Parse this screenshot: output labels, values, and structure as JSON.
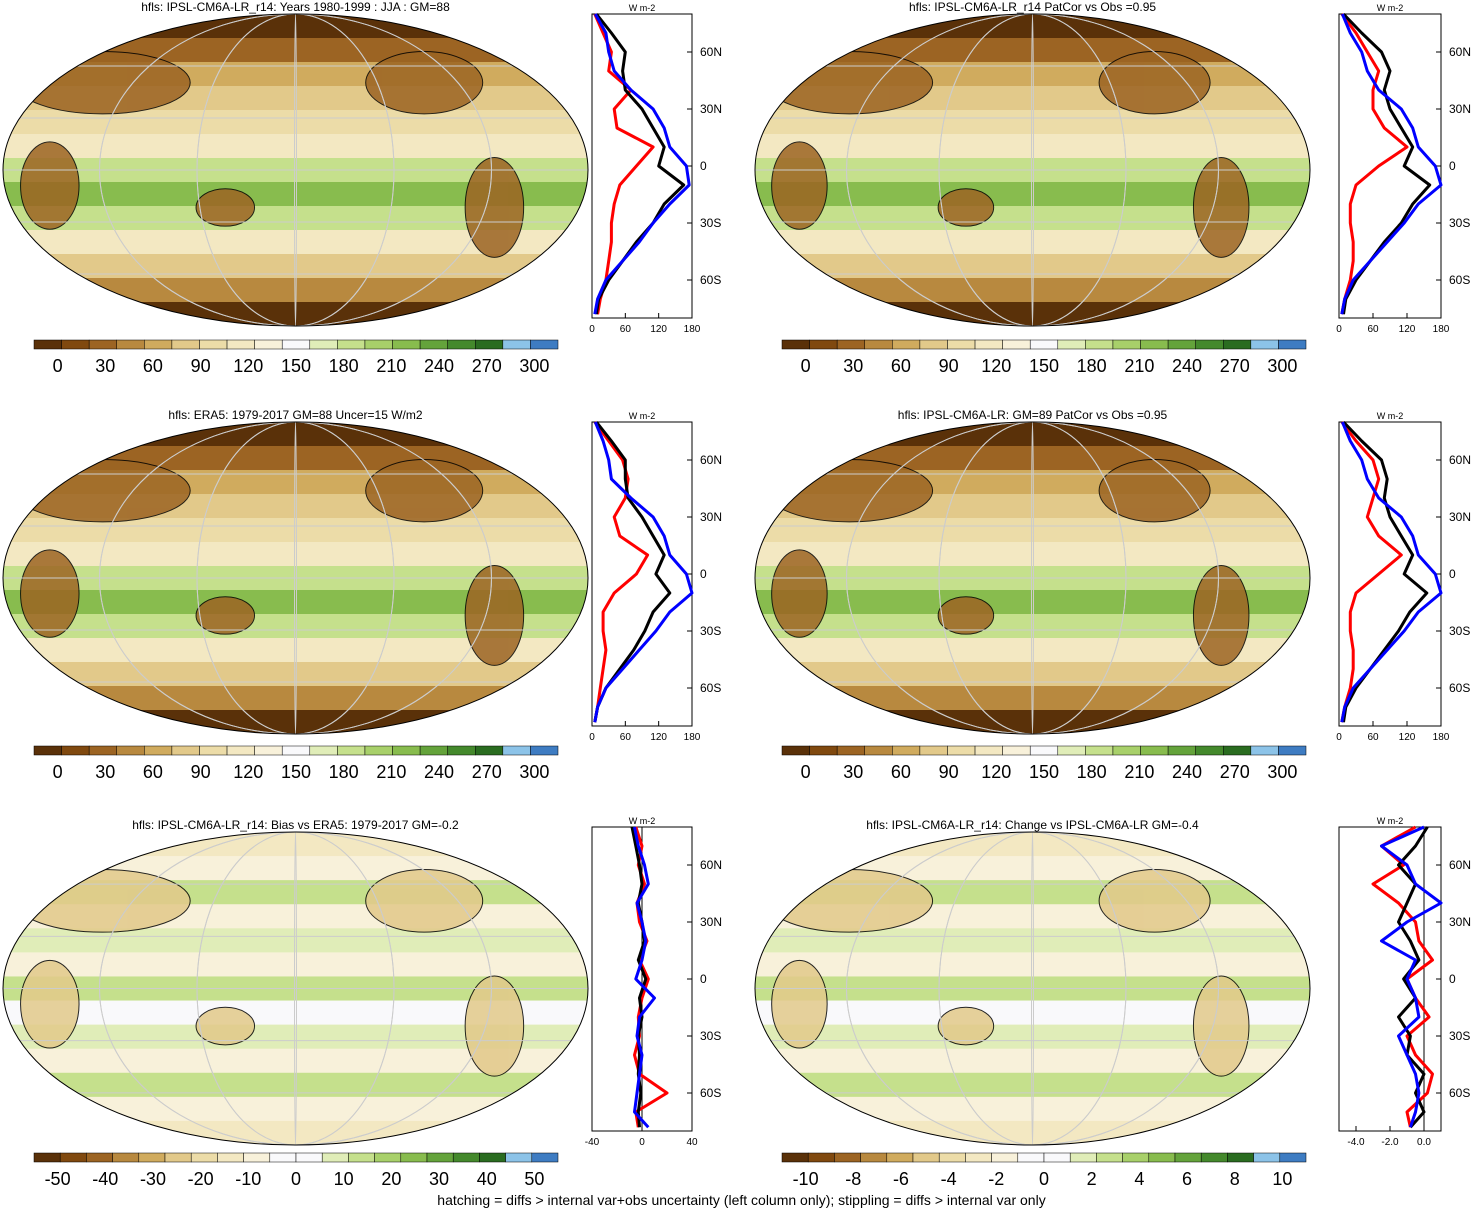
{
  "caption": "hatching = diffs > internal var+obs uncertainty (left column only); stippling = diffs > internal var only",
  "colors": {
    "colormap": [
      "#5a3109",
      "#80490f",
      "#9c6423",
      "#b8893f",
      "#d0ab5e",
      "#e2c98a",
      "#ecdca8",
      "#f3e8c2",
      "#f8f1da",
      "#f9f9fb",
      "#e0edb8",
      "#c5e08c",
      "#a8d06a",
      "#88bc4e",
      "#64a33b",
      "#44892c",
      "#2a6c20",
      "#8cc3e8",
      "#3e7cc2"
    ],
    "obs": "#ff0000",
    "model": "#000000",
    "ensemble": "#0000ff"
  },
  "chart_data": [
    {
      "id": "p1",
      "type": "heatmap",
      "title": "hfls: IPSL-CM6A-LR_r14: Years 1980-1999 : JJA : GM=88",
      "colorbar_labels": [
        "0",
        "30",
        "60",
        "90",
        "120",
        "150",
        "180",
        "210",
        "240",
        "270",
        "300"
      ],
      "zonal": {
        "units": "W m-2",
        "xlim": [
          0,
          180
        ],
        "xticks": [
          "0",
          "60",
          "120",
          "180"
        ],
        "ylim": [
          -80,
          80
        ],
        "yticks": [
          "60N",
          "30N",
          "0",
          "30S",
          "60S"
        ],
        "lat": [
          80,
          70,
          60,
          50,
          40,
          30,
          20,
          10,
          0,
          -10,
          -20,
          -30,
          -40,
          -50,
          -60,
          -70,
          -78
        ],
        "series": [
          {
            "name": "red",
            "values": [
              5,
              20,
              35,
              30,
              70,
              40,
              45,
              110,
              80,
              50,
              40,
              35,
              35,
              30,
              25,
              15,
              10
            ]
          },
          {
            "name": "black",
            "values": [
              8,
              35,
              60,
              55,
              60,
              90,
              110,
              130,
              120,
              165,
              130,
              110,
              80,
              55,
              30,
              12,
              8
            ]
          },
          {
            "name": "blue",
            "values": [
              6,
              25,
              30,
              40,
              70,
              110,
              130,
              140,
              170,
              175,
              140,
              110,
              85,
              55,
              25,
              10,
              5
            ]
          }
        ]
      }
    },
    {
      "id": "p2",
      "type": "heatmap",
      "title": "hfls: IPSL-CM6A-LR_r14 PatCor vs Obs =0.95",
      "colorbar_labels": [
        "0",
        "30",
        "60",
        "90",
        "120",
        "150",
        "180",
        "210",
        "240",
        "270",
        "300"
      ],
      "zonal": {
        "units": "W m-2",
        "xlim": [
          0,
          180
        ],
        "xticks": [
          "0",
          "60",
          "120",
          "180"
        ],
        "ylim": [
          -80,
          80
        ],
        "yticks": [
          "60N",
          "30N",
          "0",
          "30S",
          "60S"
        ],
        "lat": [
          80,
          70,
          60,
          50,
          40,
          30,
          20,
          10,
          0,
          -10,
          -20,
          -30,
          -40,
          -50,
          -60,
          -70,
          -78
        ],
        "series": [
          {
            "name": "red",
            "values": [
              5,
              30,
              50,
              70,
              60,
              60,
              80,
              120,
              70,
              30,
              20,
              20,
              25,
              25,
              20,
              10,
              5
            ]
          },
          {
            "name": "black",
            "values": [
              8,
              40,
              75,
              90,
              80,
              90,
              110,
              130,
              115,
              160,
              130,
              110,
              80,
              55,
              30,
              12,
              8
            ]
          },
          {
            "name": "blue",
            "values": [
              6,
              20,
              40,
              50,
              70,
              110,
              130,
              140,
              170,
              180,
              140,
              115,
              85,
              55,
              25,
              10,
              5
            ]
          }
        ]
      }
    },
    {
      "id": "p3",
      "type": "heatmap",
      "title": "hfls: ERA5: 1979-2017 GM=88 Uncer=15 W/m2",
      "colorbar_labels": [
        "0",
        "30",
        "60",
        "90",
        "120",
        "150",
        "180",
        "210",
        "240",
        "270",
        "300"
      ],
      "zonal": {
        "units": "W m-2",
        "xlim": [
          0,
          180
        ],
        "xticks": [
          "0",
          "60",
          "120",
          "180"
        ],
        "ylim": [
          -80,
          80
        ],
        "yticks": [
          "60N",
          "30N",
          "0",
          "30S",
          "60S"
        ],
        "lat": [
          80,
          70,
          60,
          50,
          40,
          30,
          20,
          10,
          0,
          -10,
          -20,
          -30,
          -40,
          -50,
          -60,
          -70,
          -78
        ],
        "series": [
          {
            "name": "red",
            "values": [
              5,
              30,
              55,
              65,
              60,
              40,
              50,
              100,
              80,
              40,
              20,
              20,
              25,
              20,
              15,
              10,
              5
            ]
          },
          {
            "name": "black",
            "values": [
              8,
              35,
              60,
              60,
              65,
              90,
              110,
              130,
              115,
              140,
              110,
              95,
              75,
              50,
              25,
              10,
              5
            ]
          },
          {
            "name": "blue",
            "values": [
              6,
              20,
              30,
              35,
              70,
              110,
              130,
              140,
              170,
              180,
              140,
              115,
              85,
              55,
              25,
              10,
              5
            ]
          }
        ]
      }
    },
    {
      "id": "p4",
      "type": "heatmap",
      "title": "hfls: IPSL-CM6A-LR: GM=89 PatCor vs Obs =0.95",
      "colorbar_labels": [
        "0",
        "30",
        "60",
        "90",
        "120",
        "150",
        "180",
        "210",
        "240",
        "270",
        "300"
      ],
      "zonal": {
        "units": "W m-2",
        "xlim": [
          0,
          180
        ],
        "xticks": [
          "0",
          "60",
          "120",
          "180"
        ],
        "ylim": [
          -80,
          80
        ],
        "yticks": [
          "60N",
          "30N",
          "0",
          "30S",
          "60S"
        ],
        "lat": [
          80,
          70,
          60,
          50,
          40,
          30,
          20,
          10,
          0,
          -10,
          -20,
          -30,
          -40,
          -50,
          -60,
          -70,
          -78
        ],
        "series": [
          {
            "name": "red",
            "values": [
              5,
              30,
              60,
              70,
              60,
              50,
              70,
              110,
              70,
              30,
              20,
              20,
              25,
              25,
              20,
              10,
              5
            ]
          },
          {
            "name": "black",
            "values": [
              8,
              40,
              75,
              85,
              80,
              90,
              110,
              130,
              115,
              155,
              125,
              105,
              80,
              55,
              30,
              12,
              8
            ]
          },
          {
            "name": "blue",
            "values": [
              6,
              20,
              40,
              50,
              70,
              110,
              130,
              140,
              170,
              180,
              140,
              115,
              85,
              55,
              25,
              10,
              5
            ]
          }
        ]
      }
    },
    {
      "id": "p5",
      "type": "heatmap",
      "title": "hfls: IPSL-CM6A-LR_r14: Bias vs ERA5: 1979-2017 GM=-0.2",
      "colorbar_labels": [
        "-50",
        "-40",
        "-30",
        "-20",
        "-10",
        "0",
        "10",
        "20",
        "30",
        "40",
        "50"
      ],
      "zonal": {
        "units": "W m-2",
        "xlim": [
          -40,
          40
        ],
        "xticks": [
          "-40",
          "0",
          "40"
        ],
        "ylim": [
          -80,
          80
        ],
        "yticks": [
          "60N",
          "30N",
          "0",
          "30S",
          "60S"
        ],
        "lat": [
          80,
          70,
          60,
          50,
          40,
          30,
          20,
          10,
          0,
          -10,
          -20,
          -30,
          -40,
          -50,
          -60,
          -70,
          -78
        ],
        "series": [
          {
            "name": "red",
            "values": [
              -5,
              0,
              -3,
              2,
              -4,
              -2,
              4,
              -2,
              5,
              0,
              -3,
              -2,
              -6,
              -2,
              20,
              -5,
              -3
            ]
          },
          {
            "name": "black",
            "values": [
              -8,
              -5,
              -2,
              0,
              -3,
              0,
              2,
              -3,
              3,
              -2,
              0,
              -3,
              -2,
              -3,
              -1,
              -3,
              -2
            ]
          },
          {
            "name": "blue",
            "values": [
              -6,
              -3,
              2,
              5,
              -4,
              0,
              3,
              0,
              -5,
              10,
              -2,
              -4,
              0,
              -2,
              -4,
              -6,
              5
            ]
          }
        ]
      }
    },
    {
      "id": "p6",
      "type": "heatmap",
      "title": "hfls: IPSL-CM6A-LR_r14: Change vs IPSL-CM6A-LR GM=-0.4",
      "colorbar_labels": [
        "-10",
        "-8",
        "-6",
        "-4",
        "-2",
        "0",
        "2",
        "4",
        "6",
        "8",
        "10"
      ],
      "zonal": {
        "units": "W m-2",
        "xlim": [
          -5,
          1
        ],
        "xticks": [
          "-4.0",
          "-2.0",
          "0.0"
        ],
        "ylim": [
          -80,
          80
        ],
        "yticks": [
          "60N",
          "30N",
          "0",
          "30S",
          "60S"
        ],
        "lat": [
          80,
          70,
          60,
          50,
          40,
          30,
          20,
          10,
          0,
          -10,
          -20,
          -30,
          -40,
          -50,
          -60,
          -70,
          -78
        ],
        "series": [
          {
            "name": "red",
            "values": [
              -0.5,
              -2.5,
              -1.2,
              -3.0,
              -1.5,
              -0.5,
              -0.3,
              0.5,
              -1.0,
              -0.5,
              0.3,
              -1.0,
              -0.5,
              0.5,
              0.2,
              -1.0,
              -0.8
            ]
          },
          {
            "name": "black",
            "values": [
              0.2,
              -0.5,
              -1.5,
              -0.5,
              -1.0,
              -1.5,
              -0.8,
              -0.3,
              -1.2,
              -0.5,
              -1.5,
              -0.8,
              -1.0,
              0.0,
              -0.5,
              0.0,
              -0.8
            ]
          },
          {
            "name": "blue",
            "values": [
              0.0,
              -2.5,
              -1.0,
              -0.5,
              1.0,
              -1.0,
              -2.5,
              -0.5,
              -1.0,
              -0.5,
              -0.3,
              -1.5,
              -1.0,
              -0.5,
              -0.3,
              -0.5,
              -0.8
            ]
          }
        ]
      }
    }
  ]
}
